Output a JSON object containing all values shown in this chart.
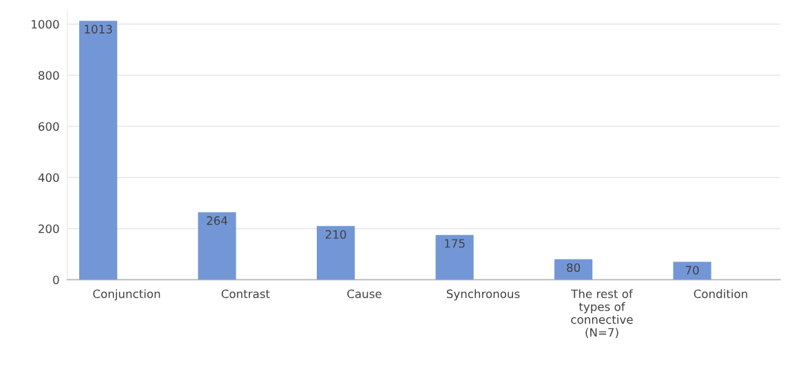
{
  "chart_data": {
    "type": "bar",
    "categories": [
      "Conjunction",
      "Contrast",
      "Cause",
      "Synchronous",
      "The rest of\ntypes of\nconnective\n(N=7)",
      "Condition"
    ],
    "values": [
      1013,
      264,
      210,
      175,
      80,
      70
    ],
    "color": "#7397d6",
    "ylim": [
      0,
      1050
    ],
    "yticks": [
      0,
      200,
      400,
      600,
      800,
      1000
    ],
    "grid": "y",
    "data_labels": true
  }
}
